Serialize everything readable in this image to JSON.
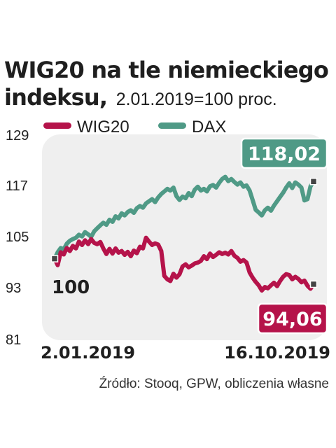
{
  "chart_data": {
    "type": "line",
    "title_bold": "WIG20 na tle niemieckiego",
    "title_bold_line2": "indeksu,",
    "subtitle": "2.01.2019=100 proc.",
    "legend": [
      "WIG20",
      "DAX"
    ],
    "ylim": [
      81,
      129
    ],
    "yticks": [
      "129",
      "117",
      "105",
      "93",
      "81"
    ],
    "x_start_label": "2.01.2019",
    "x_end_label": "16.10.2019",
    "base_label": "100",
    "source": "Źródło: Stooq, GPW, obliczenia własne",
    "colors": {
      "WIG20": "#b5134a",
      "DAX": "#4f9a86",
      "panel": "#efefef",
      "marker": "#444444"
    },
    "series": [
      {
        "name": "WIG20",
        "end_label": "94,06",
        "values": [
          100,
          98.5,
          101.5,
          101,
          102.5,
          101.8,
          103,
          102.4,
          104,
          103.2,
          104.3,
          103.4,
          104.6,
          103.7,
          103.4,
          103.9,
          102.4,
          101.1,
          102.3,
          101.2,
          102.4,
          101.4,
          101.8,
          100.9,
          101.6,
          100.6,
          101.9,
          101.3,
          102.8,
          102.4,
          104.9,
          104,
          103.2,
          103.6,
          103.3,
          101.8,
          96,
          95.2,
          94.8,
          96.5,
          95.6,
          96.4,
          98.2,
          98.7,
          98,
          98.4,
          98.9,
          99.1,
          99.5,
          100.6,
          99.9,
          101.2,
          100.4,
          100.9,
          101.5,
          101.1,
          101.4,
          101,
          101.8,
          100.7,
          100.2,
          99.3,
          99.7,
          99.1,
          96.8,
          95.6,
          94.6,
          93.8,
          92.6,
          93.4,
          93.1,
          93.8,
          94.4,
          93.6,
          94.8,
          95.8,
          96.4,
          96.2,
          95.2,
          95.8,
          95.3,
          94.5,
          94.9,
          93.7,
          93,
          94.06
        ]
      },
      {
        "name": "DAX",
        "end_label": "118,02",
        "values": [
          100,
          101.5,
          102.5,
          102.2,
          103.5,
          104.2,
          104.6,
          104.9,
          105.6,
          105.2,
          106.2,
          105.7,
          105.1,
          106.4,
          107.1,
          107.8,
          108.4,
          107.9,
          109.1,
          108.6,
          109.9,
          109.4,
          110.6,
          110.1,
          110.9,
          111.3,
          110.7,
          111.8,
          112.3,
          111.9,
          112.9,
          113.4,
          113.9,
          113.2,
          114.3,
          115.1,
          115.7,
          116.3,
          115.9,
          116.6,
          114.6,
          113.7,
          114.5,
          114.1,
          115.3,
          114.6,
          116.1,
          116.8,
          115.9,
          116.3,
          115.7,
          116.9,
          117.2,
          116.6,
          117.7,
          118.6,
          119.1,
          118.1,
          118.6,
          117.9,
          117.3,
          117.8,
          116.8,
          117.1,
          115.9,
          113.7,
          111.4,
          110.8,
          110.1,
          111.3,
          111.9,
          111.2,
          112.4,
          113.4,
          114.4,
          115.4,
          116.6,
          117.6,
          116.5,
          117.8,
          117.3,
          116.6,
          113.6,
          113.9,
          116.9,
          118.02
        ]
      }
    ]
  }
}
